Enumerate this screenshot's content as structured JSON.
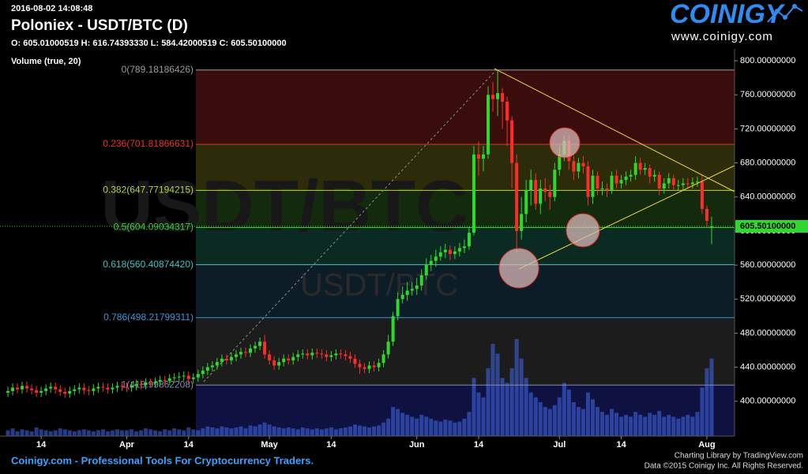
{
  "header": {
    "timestamp": "2016-08-02 14:08:48",
    "title": "Poloniex - USDT/BTC (D)",
    "ohlc": "O: 605.01000519 H: 616.74393330 L: 584.42000519 C: 605.50100000",
    "indicator": "Volume (true, 20)"
  },
  "logo": {
    "name": "COINIGY",
    "url": "www.coinigy.com"
  },
  "footer": {
    "tagline": "Coinigy.com - Professional Tools For Cryptocurrency Traders.",
    "credit": "Charting Library by TradingView.com",
    "copyright": "Data ©2015 Coinigy Inc. All Rights Reserved."
  },
  "chart_data": {
    "type": "candlestick",
    "watermark": "USDT/BTC",
    "categories": [
      null,
      null,
      null,
      null,
      null,
      null,
      null,
      "14",
      null,
      null,
      null,
      null,
      null,
      null,
      null,
      null,
      null,
      null,
      null,
      null,
      null,
      null,
      null,
      null,
      null,
      "Apr",
      null,
      null,
      null,
      null,
      null,
      null,
      null,
      null,
      null,
      null,
      null,
      null,
      "14",
      null,
      null,
      null,
      null,
      null,
      null,
      null,
      null,
      null,
      null,
      null,
      null,
      null,
      null,
      null,
      null,
      "May",
      null,
      null,
      null,
      null,
      null,
      null,
      null,
      null,
      null,
      null,
      null,
      null,
      "14",
      null,
      null,
      null,
      null,
      null,
      null,
      null,
      null,
      null,
      null,
      null,
      null,
      null,
      null,
      null,
      null,
      null,
      "Jun",
      null,
      null,
      null,
      null,
      null,
      null,
      null,
      null,
      null,
      null,
      null,
      null,
      "14",
      null,
      null,
      null,
      null,
      null,
      null,
      null,
      null,
      null,
      null,
      null,
      null,
      null,
      null,
      null,
      null,
      "Jul",
      null,
      null,
      null,
      null,
      null,
      null,
      null,
      null,
      null,
      null,
      null,
      null,
      "14",
      null,
      null,
      null,
      null,
      null,
      null,
      null,
      null,
      null,
      null,
      null,
      null,
      null,
      null,
      null,
      null,
      null,
      "Aug",
      null
    ],
    "open": [
      410,
      412,
      416,
      414,
      418,
      415,
      413,
      410,
      412,
      415,
      417,
      414,
      411,
      409,
      412,
      414,
      416,
      413,
      412,
      415,
      417,
      416,
      414,
      416,
      418,
      417,
      416,
      418,
      420,
      419,
      422,
      421,
      423,
      425,
      424,
      427,
      428,
      429,
      430,
      426,
      428,
      432,
      436,
      440,
      442,
      446,
      450,
      448,
      452,
      455,
      458,
      457,
      462,
      465,
      470,
      455,
      448,
      442,
      446,
      450,
      448,
      452,
      455,
      456,
      454,
      457,
      456,
      455,
      452,
      454,
      456,
      455,
      453,
      450,
      444,
      440,
      438,
      442,
      440,
      445,
      455,
      470,
      500,
      520,
      525,
      530,
      532,
      536,
      548,
      560,
      565,
      570,
      575,
      578,
      573,
      576,
      580,
      582,
      598,
      690,
      685,
      690,
      760,
      755,
      762,
      752,
      730,
      680,
      600,
      620,
      648,
      660,
      632,
      650,
      646,
      640,
      672,
      690,
      706,
      682,
      670,
      680,
      676,
      640,
      665,
      650,
      650,
      648,
      665,
      656,
      660,
      664,
      666,
      680,
      672,
      674,
      664,
      666,
      650,
      656,
      662,
      654,
      654,
      656,
      655,
      657,
      658,
      626,
      605.01000519
    ],
    "high": [
      417,
      421,
      421,
      423,
      423,
      420,
      418,
      417,
      420,
      422,
      422,
      419,
      416,
      417,
      419,
      421,
      421,
      418,
      420,
      422,
      422,
      421,
      421,
      423,
      423,
      422,
      423,
      425,
      425,
      427,
      427,
      428,
      430,
      430,
      432,
      433,
      434,
      435,
      435,
      433,
      437,
      441,
      445,
      447,
      451,
      455,
      455,
      457,
      460,
      463,
      463,
      467,
      470,
      475,
      478,
      460,
      453,
      451,
      455,
      455,
      457,
      460,
      461,
      461,
      462,
      462,
      461,
      460,
      459,
      461,
      461,
      460,
      458,
      455,
      449,
      445,
      447,
      447,
      450,
      460,
      478,
      505,
      528,
      535,
      540,
      540,
      545,
      555,
      568,
      572,
      578,
      582,
      585,
      583,
      582,
      586,
      590,
      605,
      700,
      705,
      700,
      770,
      775,
      789,
      768,
      758,
      735,
      690,
      640,
      660,
      672,
      668,
      660,
      662,
      655,
      680,
      700,
      712,
      712,
      688,
      686,
      688,
      682,
      672,
      670,
      658,
      656,
      670,
      672,
      666,
      670,
      672,
      688,
      686,
      680,
      678,
      672,
      670,
      662,
      668,
      666,
      660,
      662,
      662,
      663,
      664,
      666,
      630,
      616.7439333
    ],
    "low": [
      405,
      407,
      409,
      409,
      410,
      408,
      405,
      405,
      407,
      410,
      409,
      406,
      404,
      404,
      407,
      409,
      408,
      407,
      407,
      410,
      411,
      409,
      409,
      411,
      412,
      411,
      411,
      413,
      414,
      414,
      416,
      416,
      418,
      419,
      419,
      422,
      423,
      424,
      421,
      421,
      423,
      427,
      431,
      435,
      437,
      441,
      443,
      443,
      447,
      450,
      452,
      452,
      457,
      460,
      450,
      443,
      437,
      437,
      441,
      443,
      443,
      447,
      450,
      449,
      449,
      451,
      450,
      447,
      447,
      449,
      450,
      448,
      445,
      439,
      432,
      433,
      433,
      435,
      435,
      440,
      450,
      465,
      495,
      515,
      518,
      524,
      525,
      530,
      543,
      553,
      558,
      565,
      568,
      566,
      567,
      570,
      574,
      578,
      595,
      665,
      670,
      685,
      740,
      735,
      720,
      700,
      650,
      575,
      590,
      610,
      630,
      625,
      620,
      635,
      625,
      635,
      665,
      682,
      672,
      660,
      662,
      668,
      630,
      632,
      642,
      642,
      640,
      644,
      650,
      650,
      654,
      658,
      660,
      666,
      666,
      656,
      658,
      642,
      644,
      650,
      648,
      648,
      648,
      650,
      650,
      652,
      620,
      604,
      584.42000519
    ],
    "close": [
      412,
      416,
      414,
      418,
      415,
      413,
      410,
      412,
      415,
      417,
      414,
      411,
      409,
      412,
      414,
      416,
      413,
      412,
      415,
      417,
      416,
      414,
      416,
      418,
      417,
      416,
      418,
      420,
      419,
      422,
      421,
      423,
      425,
      424,
      427,
      428,
      429,
      430,
      426,
      428,
      432,
      436,
      440,
      442,
      446,
      450,
      448,
      452,
      455,
      458,
      457,
      462,
      465,
      470,
      455,
      448,
      442,
      446,
      450,
      448,
      452,
      455,
      456,
      454,
      457,
      456,
      455,
      452,
      454,
      456,
      455,
      453,
      450,
      444,
      440,
      438,
      442,
      440,
      445,
      455,
      470,
      500,
      520,
      525,
      530,
      532,
      536,
      548,
      560,
      565,
      570,
      575,
      578,
      573,
      576,
      580,
      582,
      598,
      690,
      685,
      690,
      760,
      755,
      762,
      752,
      730,
      680,
      600,
      620,
      648,
      660,
      632,
      650,
      646,
      640,
      672,
      690,
      706,
      682,
      670,
      680,
      676,
      640,
      665,
      650,
      650,
      648,
      665,
      656,
      660,
      664,
      666,
      680,
      672,
      674,
      664,
      666,
      650,
      656,
      662,
      654,
      654,
      656,
      655,
      657,
      658,
      626,
      612,
      605.501
    ],
    "up_color": "#2fd82f",
    "down_color": "#ff2b2b",
    "volume": [
      6,
      8,
      5,
      7,
      6,
      5,
      9,
      7,
      6,
      5,
      6,
      8,
      7,
      6,
      5,
      6,
      7,
      6,
      5,
      6,
      7,
      5,
      6,
      7,
      6,
      6,
      7,
      5,
      6,
      8,
      7,
      6,
      5,
      7,
      6,
      8,
      7,
      6,
      9,
      7,
      6,
      8,
      10,
      9,
      8,
      10,
      9,
      8,
      9,
      10,
      8,
      11,
      10,
      12,
      14,
      12,
      10,
      9,
      8,
      9,
      8,
      7,
      9,
      8,
      7,
      8,
      7,
      8,
      9,
      7,
      8,
      9,
      10,
      12,
      11,
      10,
      9,
      10,
      11,
      14,
      18,
      30,
      28,
      24,
      22,
      20,
      18,
      22,
      20,
      18,
      16,
      15,
      17,
      16,
      14,
      15,
      18,
      25,
      60,
      45,
      40,
      70,
      95,
      85,
      60,
      55,
      70,
      100,
      80,
      60,
      45,
      40,
      35,
      30,
      28,
      32,
      40,
      55,
      48,
      35,
      30,
      28,
      45,
      38,
      30,
      25,
      22,
      28,
      24,
      20,
      22,
      20,
      25,
      22,
      20,
      24,
      22,
      26,
      20,
      22,
      20,
      18,
      20,
      22,
      20,
      25,
      50,
      70,
      80
    ],
    "volume_color": "#3f63e0",
    "volume_ylim": [
      0,
      100
    ],
    "ylim": [
      359,
      814
    ],
    "yticks": [
      {
        "value": 400,
        "label": "400.00000000"
      },
      {
        "value": 440,
        "label": "440.00000000"
      },
      {
        "value": 480,
        "label": "480.00000000"
      },
      {
        "value": 520,
        "label": "520.00000000"
      },
      {
        "value": 560,
        "label": "560.00000000"
      },
      {
        "value": 600,
        "label": "600.00000000"
      },
      {
        "value": 640,
        "label": "640.00000000"
      },
      {
        "value": 680,
        "label": "680.00000000"
      },
      {
        "value": 720,
        "label": "720.00000000"
      },
      {
        "value": 760,
        "label": "760.00000000"
      },
      {
        "value": 800,
        "label": "800.00000000"
      }
    ],
    "price_label": {
      "value": 605.501,
      "label": "605.50100000"
    },
    "price_color": "#2fd82f",
    "fib_levels": [
      {
        "value": 789.18186426,
        "label": "0(789.18186426)",
        "color": "#9a9a9a",
        "fill": "#3a0d0d"
      },
      {
        "value": 701.81866631,
        "label": "0.236(701.81866631)",
        "color": "#e8332b",
        "fill": "#2c2c0a"
      },
      {
        "value": 647.77194215,
        "label": "0.382(647.77194215)",
        "color": "#b6d33a",
        "fill": "#142a0c"
      },
      {
        "value": 604.09034317,
        "label": "0.5(604.09034317)",
        "color": "#3cc83c",
        "fill": "#0b2a22"
      },
      {
        "value": 560.4087442,
        "label": "0.618(560.40874420)",
        "color": "#36c8c0",
        "fill": "#0c1d28"
      },
      {
        "value": 498.21799311,
        "label": "0.786(498.21799311)",
        "color": "#3a96d8",
        "fill": "#1c1c1c"
      },
      {
        "value": 418.99862208,
        "label": "1(418.99862208)",
        "color": "#8a8ab8",
        "fill": "#0f1240"
      }
    ]
  }
}
